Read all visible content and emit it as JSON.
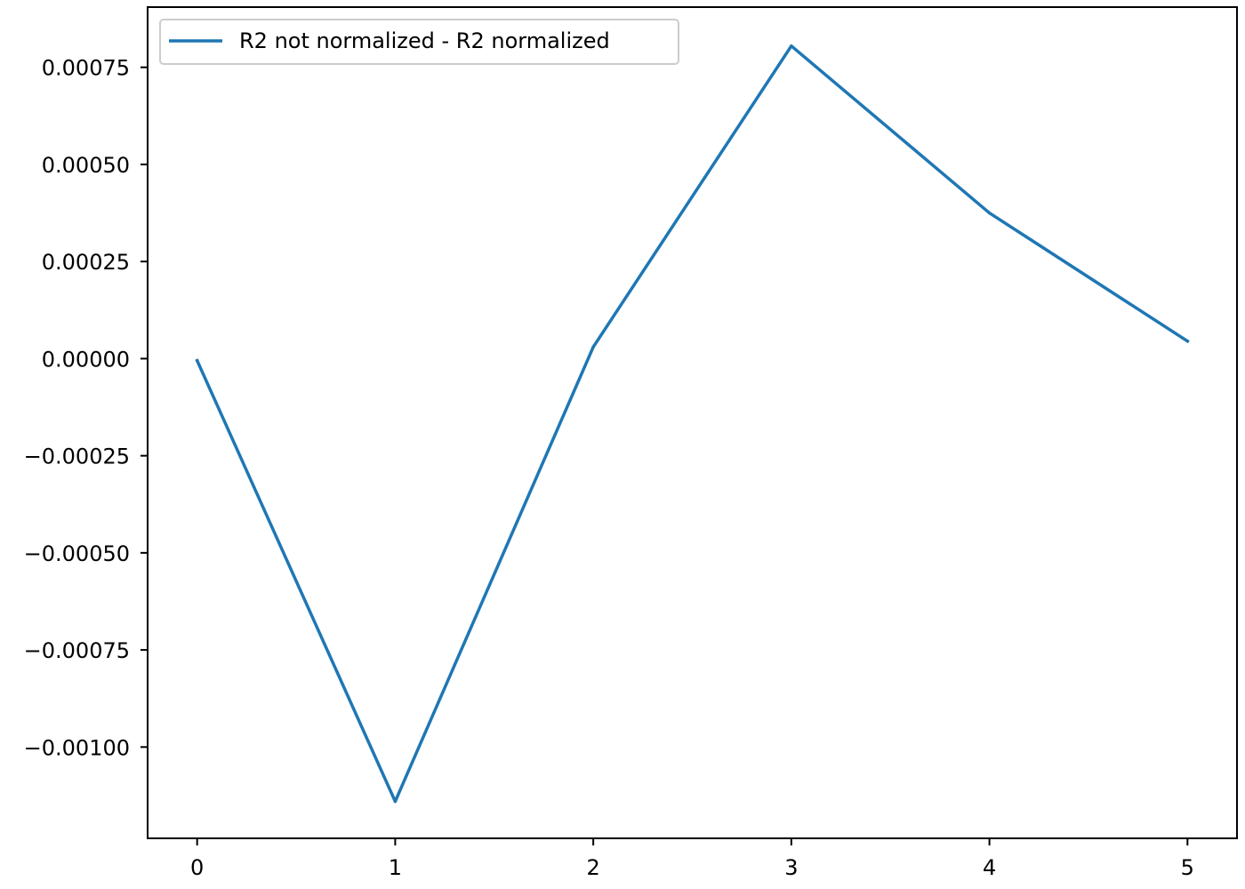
{
  "chart_data": {
    "type": "line",
    "title": "",
    "xlabel": "",
    "ylabel": "",
    "x": [
      0,
      1,
      2,
      3,
      4,
      5
    ],
    "series": [
      {
        "name": "R2 not normalized - R2 normalized",
        "values": [
          -5e-06,
          -0.00114,
          3e-05,
          0.000805,
          0.000375,
          4.5e-05
        ],
        "color": "#1f77b4"
      }
    ],
    "xlim": [
      -0.25,
      5.25
    ],
    "ylim": [
      -0.001235,
      0.000905
    ],
    "xticks": [
      0,
      1,
      2,
      3,
      4,
      5
    ],
    "xtick_labels": [
      "0",
      "1",
      "2",
      "3",
      "4",
      "5"
    ],
    "yticks": [
      0.00075,
      0.0005,
      0.00025,
      0.0,
      -0.00025,
      -0.0005,
      -0.00075,
      -0.001
    ],
    "ytick_labels": [
      "0.00075",
      "0.00050",
      "0.00025",
      "0.00000",
      "−0.00025",
      "−0.00050",
      "−0.00075",
      "−0.00100"
    ],
    "grid": false,
    "legend_position": "top-left"
  }
}
